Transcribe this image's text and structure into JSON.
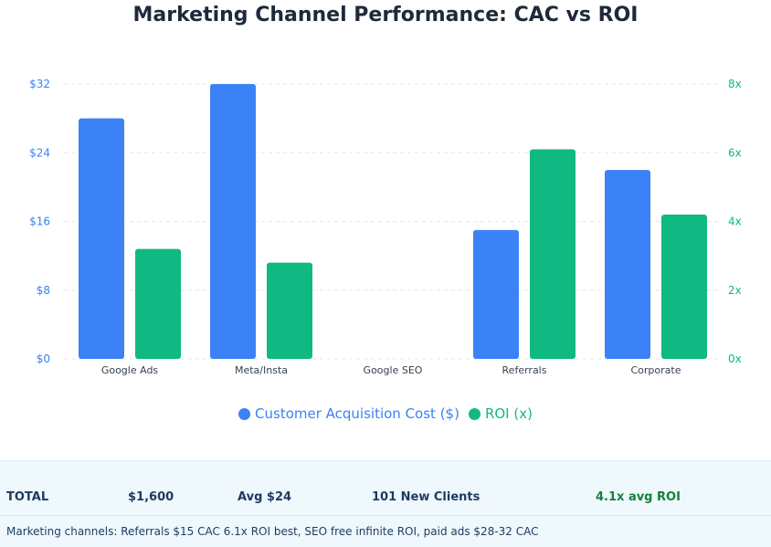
{
  "chart_data": {
    "type": "bar",
    "title": "Marketing Channel Performance: CAC vs ROI",
    "categories": [
      "Google Ads",
      "Meta/Insta",
      "Google SEO",
      "Referrals",
      "Corporate"
    ],
    "series": [
      {
        "name": "Customer Acquisition Cost ($)",
        "axis": "left",
        "color": "#3b82f6",
        "values": [
          28,
          32,
          0,
          15,
          22
        ]
      },
      {
        "name": "ROI (x)",
        "axis": "right",
        "color": "#10b981",
        "values": [
          3.2,
          2.8,
          0,
          6.1,
          4.2
        ]
      }
    ],
    "y_left": {
      "ticks": [
        "$0",
        "$8",
        "$16",
        "$24",
        "$32"
      ],
      "tick_values": [
        0,
        8,
        16,
        24,
        32
      ],
      "range": [
        0,
        32
      ],
      "color": "#3b82f6"
    },
    "y_right": {
      "ticks": [
        "0x",
        "2x",
        "4x",
        "6x",
        "8x"
      ],
      "tick_values": [
        0,
        2,
        4,
        6,
        8
      ],
      "range": [
        0,
        8
      ],
      "color": "#10b981"
    },
    "grid": true,
    "legend_position": "bottom"
  },
  "totals": {
    "label": "TOTAL",
    "spend": "$1,600",
    "avg_cac": "Avg $24",
    "new_clients": "101 New Clients",
    "avg_roi": "4.1x avg ROI",
    "roi_color": "#15803d"
  },
  "note": "Marketing channels: Referrals $15 CAC 6.1x ROI best, SEO free infinite ROI, paid ads $28-32 CAC"
}
